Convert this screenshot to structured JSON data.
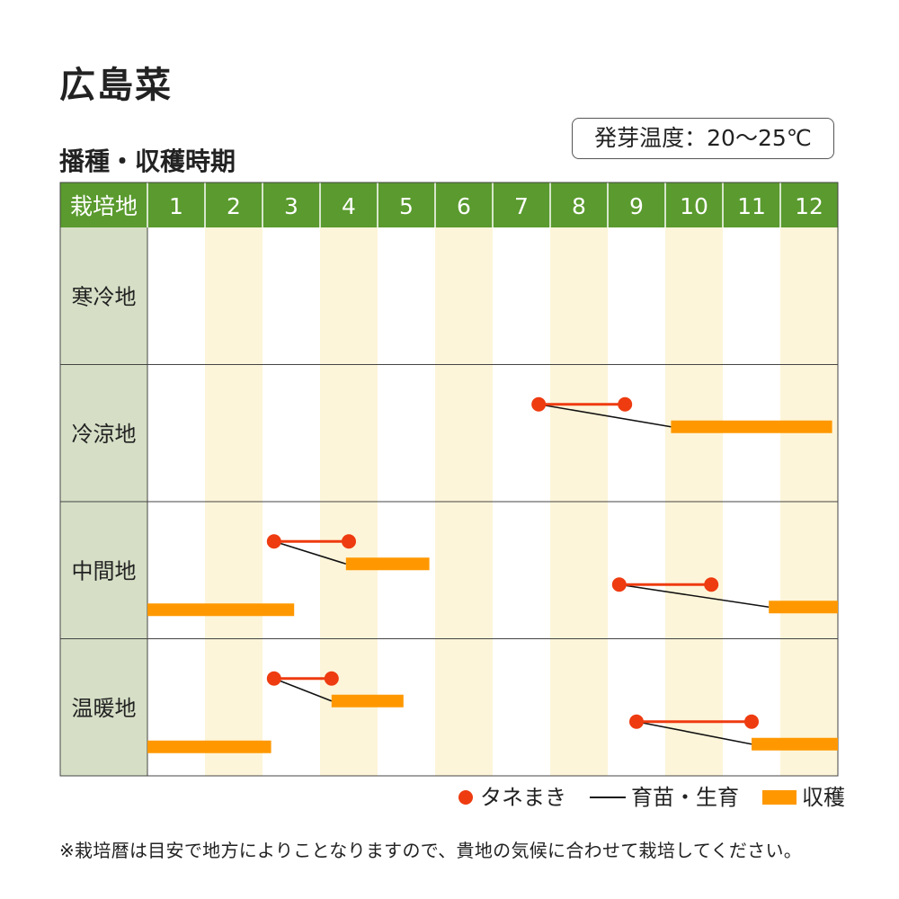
{
  "title": "広島菜",
  "subtitle": "播種・収穫時期",
  "germination_temp": "発芽温度：20〜25℃",
  "legend": {
    "sowing": "タネまき",
    "growing": "育苗・生育",
    "harvest": "収穫"
  },
  "note": "※栽培暦は目安で地方によりことなりますので、貴地の気候に合わせて栽培してください。",
  "colors": {
    "header_green": "#5a9a2e",
    "region_bg": "#d6dfc6",
    "stripe": "#fdf5d9",
    "sowing_dot": "#ee3b10",
    "harvest_bar": "#ff9800",
    "growth_line": "#111111"
  },
  "chart_data": {
    "type": "gantt",
    "header_label": "栽培地",
    "months": [
      "1",
      "2",
      "3",
      "4",
      "5",
      "6",
      "7",
      "8",
      "9",
      "10",
      "11",
      "12"
    ],
    "regions": [
      {
        "name": "寒冷地",
        "schedules": []
      },
      {
        "name": "冷涼地",
        "schedules": [
          {
            "sow": [
              7.8,
              9.3
            ],
            "harvest": [
              10.1,
              12.9
            ],
            "level": 0
          }
        ]
      },
      {
        "name": "中間地",
        "schedules": [
          {
            "sow": [
              3.2,
              4.5
            ],
            "harvest": [
              4.45,
              5.9
            ],
            "level": 0
          },
          {
            "harvest": [
              1.0,
              3.55
            ],
            "level": 1
          },
          {
            "sow": [
              9.2,
              10.8
            ],
            "harvest": [
              11.8,
              13.0
            ],
            "level": 1
          }
        ]
      },
      {
        "name": "温暖地",
        "schedules": [
          {
            "sow": [
              3.2,
              4.2
            ],
            "harvest": [
              4.2,
              5.45
            ],
            "level": 0
          },
          {
            "harvest": [
              1.0,
              3.15
            ],
            "level": 1
          },
          {
            "sow": [
              9.5,
              11.5
            ],
            "harvest": [
              11.5,
              13.0
            ],
            "level": 1
          }
        ]
      }
    ]
  }
}
